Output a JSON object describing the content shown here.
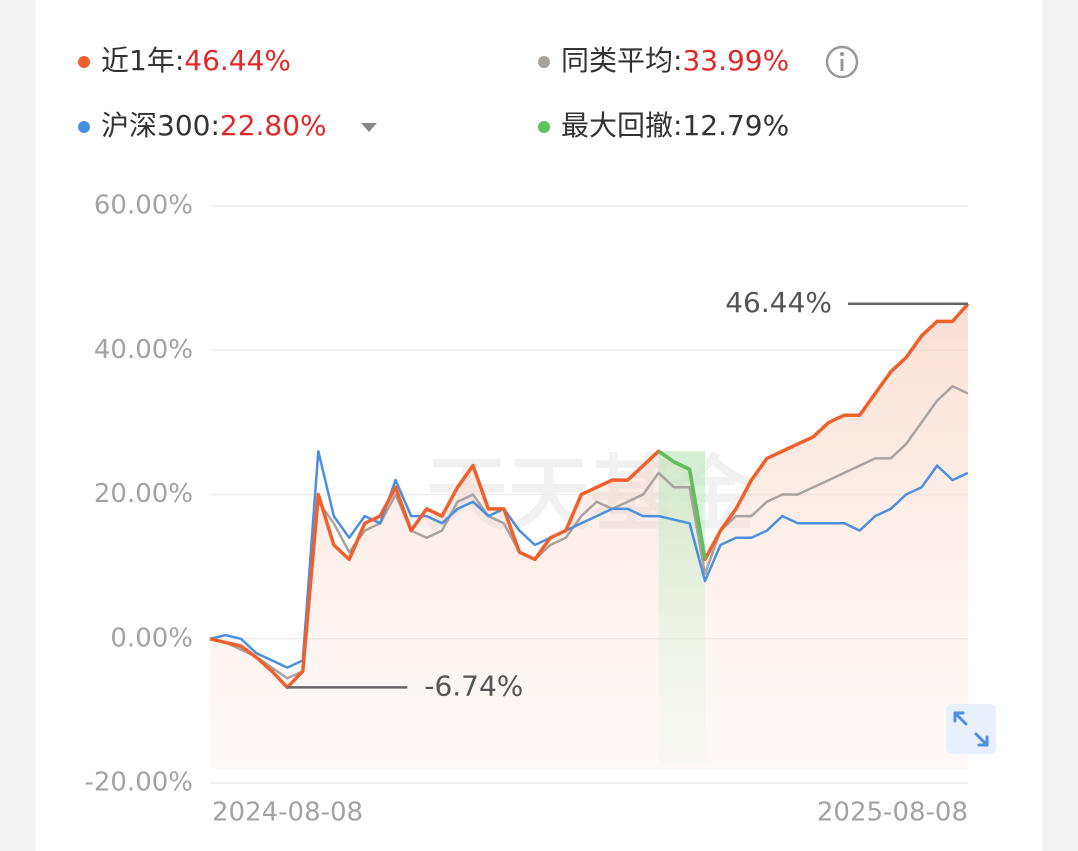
{
  "chart_data": {
    "type": "line",
    "watermark": "天天基金",
    "categories": [
      "2024-08-08",
      null,
      null,
      null,
      null,
      null,
      null,
      null,
      null,
      null,
      null,
      null,
      null,
      null,
      null,
      null,
      null,
      null,
      null,
      null,
      null,
      null,
      null,
      null,
      null,
      null,
      null,
      null,
      null,
      null,
      null,
      null,
      null,
      null,
      null,
      null,
      null,
      null,
      null,
      null,
      null,
      null,
      null,
      null,
      null,
      null,
      null,
      null,
      null,
      "2025-08-08"
    ],
    "series": [
      {
        "name": "近1年:",
        "value_label": "46.44%",
        "value_label_color": "#e02a2a",
        "color": "#f0602c",
        "area": true,
        "values": [
          0,
          -0.5,
          -1,
          -2.6,
          -4.5,
          -6.74,
          -4.5,
          20,
          13,
          11,
          16,
          17,
          21,
          15,
          18,
          17,
          21,
          24,
          18,
          18,
          12,
          11,
          14,
          15,
          20,
          21,
          22,
          22,
          24,
          26,
          24.5,
          23.5,
          11,
          15,
          18,
          22,
          25,
          26,
          27,
          28,
          30,
          31,
          31,
          34,
          37,
          39,
          42,
          44,
          44,
          46.44
        ]
      },
      {
        "name": "同类平均:",
        "value_label": "33.99%",
        "value_label_color": "#e02a2a",
        "color": "#a8a3a1",
        "values": [
          0,
          -0.5,
          -1.5,
          -2.5,
          -4,
          -5.5,
          -4.5,
          19,
          16,
          12,
          15,
          16,
          20,
          15,
          14,
          15,
          19,
          20,
          17,
          16,
          12,
          11,
          13,
          14,
          17,
          19,
          18,
          19,
          20,
          23,
          21,
          21,
          9,
          15,
          17,
          17,
          19,
          20,
          20,
          21,
          22,
          23,
          24,
          25,
          25,
          27,
          30,
          33,
          35,
          34
        ]
      },
      {
        "name": "沪深300:",
        "value_label": "22.80%",
        "value_label_color": "#e02a2a",
        "color": "#4a8fe0",
        "values": [
          0,
          0.5,
          0,
          -2,
          -3,
          -4,
          -3,
          26,
          17,
          14,
          17,
          16,
          22,
          17,
          17,
          16,
          18,
          19,
          17,
          18,
          15,
          13,
          14,
          15,
          16,
          17,
          18,
          18,
          17,
          17,
          16.5,
          16,
          8,
          13,
          14,
          14,
          15,
          17,
          16,
          16,
          16,
          16,
          15,
          17,
          18,
          20,
          21,
          24,
          22,
          23
        ]
      },
      {
        "name": "最大回撤:",
        "value_label": "12.79%",
        "value_label_color": "#333333",
        "color": "#5cc15c",
        "band": true,
        "values": [
          null,
          null,
          null,
          null,
          null,
          null,
          null,
          null,
          null,
          null,
          null,
          null,
          null,
          null,
          null,
          null,
          null,
          null,
          null,
          null,
          null,
          null,
          null,
          null,
          null,
          null,
          null,
          null,
          null,
          26,
          24.5,
          23.5,
          11,
          null,
          null,
          null,
          null,
          null,
          null,
          null,
          null,
          null,
          null,
          null,
          null,
          null,
          null,
          null,
          null,
          null
        ]
      }
    ],
    "ylim": [
      -20,
      60
    ],
    "yticks": [
      {
        "value": -20,
        "label": "-20.00%"
      },
      {
        "value": 0,
        "label": "0.00%"
      },
      {
        "value": 20,
        "label": "20.00%"
      },
      {
        "value": 40,
        "label": "40.00%"
      },
      {
        "value": 60,
        "label": "60.00%"
      }
    ],
    "grid": true,
    "annotations": [
      {
        "label": "46.44%",
        "value": 46.44
      },
      {
        "label": "-6.74%",
        "value": -6.74
      }
    ]
  }
}
